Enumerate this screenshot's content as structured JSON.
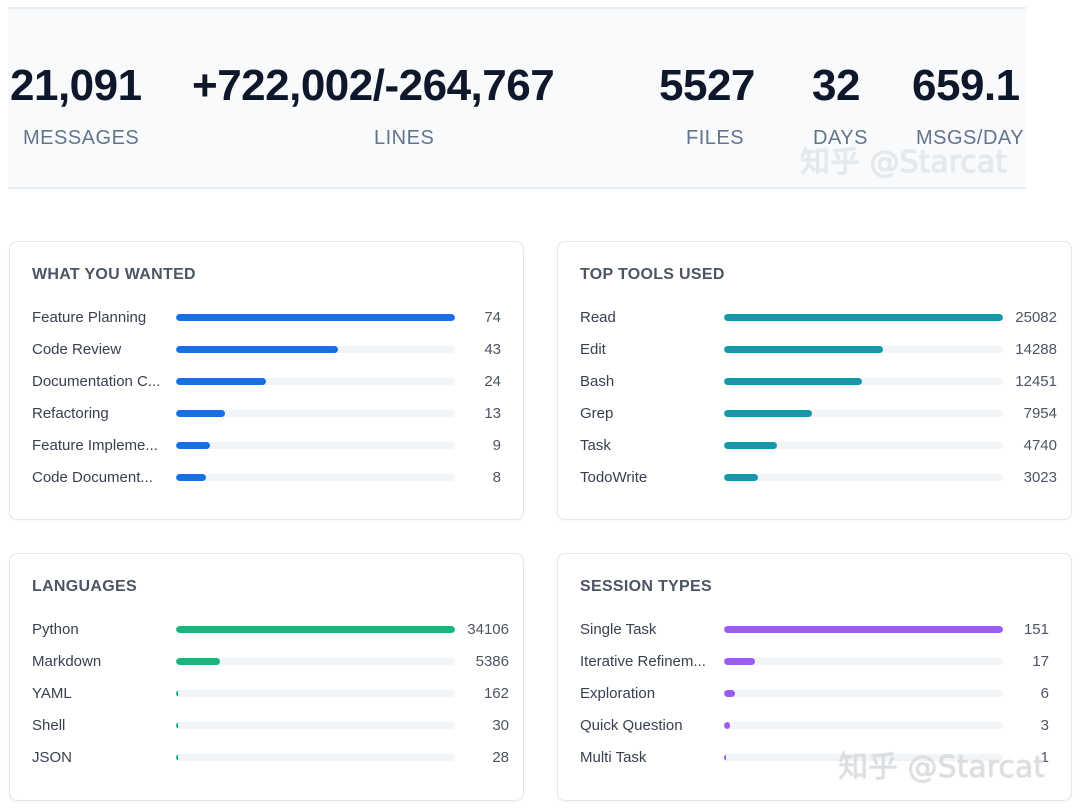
{
  "stats": [
    {
      "value": "21,091",
      "label": "MESSAGES"
    },
    {
      "value": "+722,002/-264,767",
      "label": "LINES"
    },
    {
      "value": "5527",
      "label": "FILES"
    },
    {
      "value": "32",
      "label": "DAYS"
    },
    {
      "value": "659.1",
      "label": "MSGS/DAY"
    }
  ],
  "watermark": "知乎 @Starcat",
  "cards": {
    "wanted": {
      "title": "WHAT YOU WANTED",
      "color": "#1a6fe8",
      "max": 74,
      "rows": [
        {
          "label": "Feature Planning",
          "value": 74
        },
        {
          "label": "Code Review",
          "value": 43
        },
        {
          "label": "Documentation C...",
          "value": 24
        },
        {
          "label": "Refactoring",
          "value": 13
        },
        {
          "label": "Feature Impleme...",
          "value": 9
        },
        {
          "label": "Code Document...",
          "value": 8
        }
      ]
    },
    "tools": {
      "title": "TOP TOOLS USED",
      "color": "#1597ac",
      "max": 25082,
      "rows": [
        {
          "label": "Read",
          "value": 25082
        },
        {
          "label": "Edit",
          "value": 14288
        },
        {
          "label": "Bash",
          "value": 12451
        },
        {
          "label": "Grep",
          "value": 7954
        },
        {
          "label": "Task",
          "value": 4740
        },
        {
          "label": "TodoWrite",
          "value": 3023
        }
      ]
    },
    "languages": {
      "title": "LANGUAGES",
      "color": "#15b67c",
      "max": 34106,
      "rows": [
        {
          "label": "Python",
          "value": 34106
        },
        {
          "label": "Markdown",
          "value": 5386
        },
        {
          "label": "YAML",
          "value": 162
        },
        {
          "label": "Shell",
          "value": 30
        },
        {
          "label": "JSON",
          "value": 28
        }
      ]
    },
    "sessions": {
      "title": "SESSION TYPES",
      "color": "#9a5cf0",
      "max": 151,
      "rows": [
        {
          "label": "Single Task",
          "value": 151
        },
        {
          "label": "Iterative Refinem...",
          "value": 17
        },
        {
          "label": "Exploration",
          "value": 6
        },
        {
          "label": "Quick Question",
          "value": 3
        },
        {
          "label": "Multi Task",
          "value": 1
        }
      ]
    }
  }
}
